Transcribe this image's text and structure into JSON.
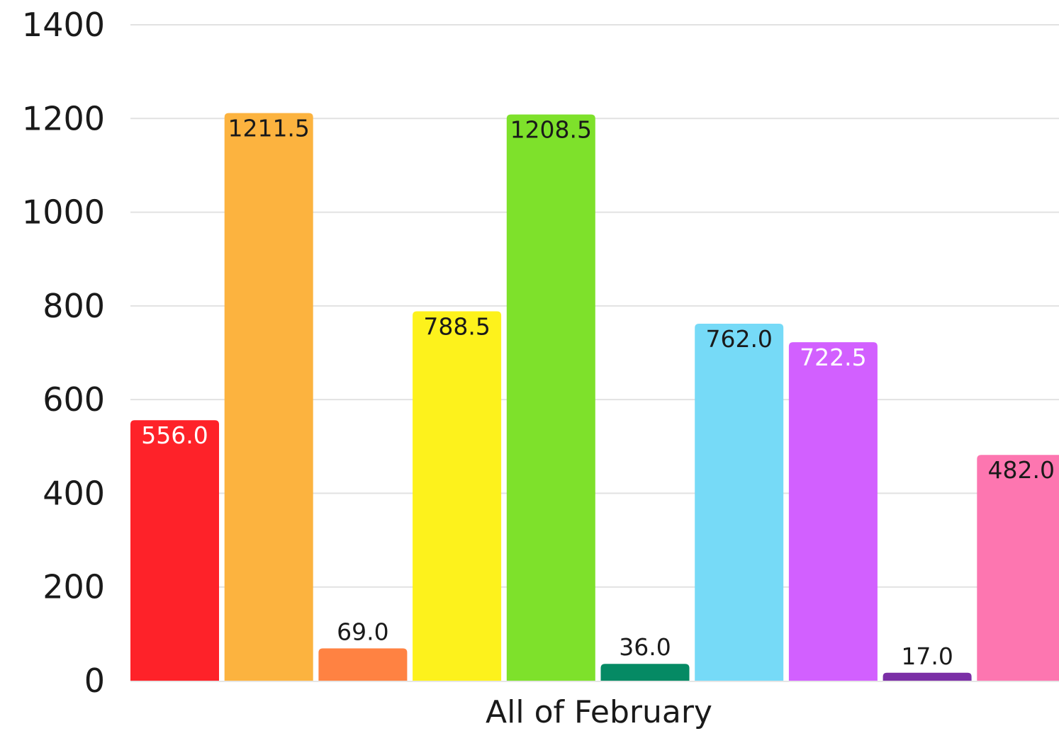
{
  "chart_data": {
    "type": "bar",
    "categories": [
      "All of February"
    ],
    "title": "",
    "xlabel": "",
    "ylabel": "",
    "ylim": [
      0,
      1400
    ],
    "yticks": [
      0,
      200,
      400,
      600,
      800,
      1000,
      1200,
      1400
    ],
    "grid": true,
    "legend": "none",
    "series": [
      {
        "values": [
          556.0
        ],
        "label": "556.0",
        "color": "#fe2229",
        "label_color": "#ffffff"
      },
      {
        "values": [
          1211.5
        ],
        "label": "1211.5",
        "color": "#fcb33f",
        "label_color": "#1a1a1a"
      },
      {
        "values": [
          69.0
        ],
        "label": "69.0",
        "color": "#ff8242",
        "label_color": "#1a1a1a"
      },
      {
        "values": [
          788.5
        ],
        "label": "788.5",
        "color": "#fdf21c",
        "label_color": "#1a1a1a"
      },
      {
        "values": [
          1208.5
        ],
        "label": "1208.5",
        "color": "#7ee12b",
        "label_color": "#1a1a1a"
      },
      {
        "values": [
          36.0
        ],
        "label": "36.0",
        "color": "#058a64",
        "label_color": "#1a1a1a"
      },
      {
        "values": [
          762.0
        ],
        "label": "762.0",
        "color": "#76daf7",
        "label_color": "#1a1a1a"
      },
      {
        "values": [
          722.5
        ],
        "label": "722.5",
        "color": "#d260ff",
        "label_color": "#ffffff"
      },
      {
        "values": [
          17.0
        ],
        "label": "17.0",
        "color": "#7b2fa6",
        "label_color": "#1a1a1a"
      },
      {
        "values": [
          482.0
        ],
        "label": "482.0",
        "color": "#fd76b0",
        "label_color": "#1a1a1a"
      }
    ]
  }
}
